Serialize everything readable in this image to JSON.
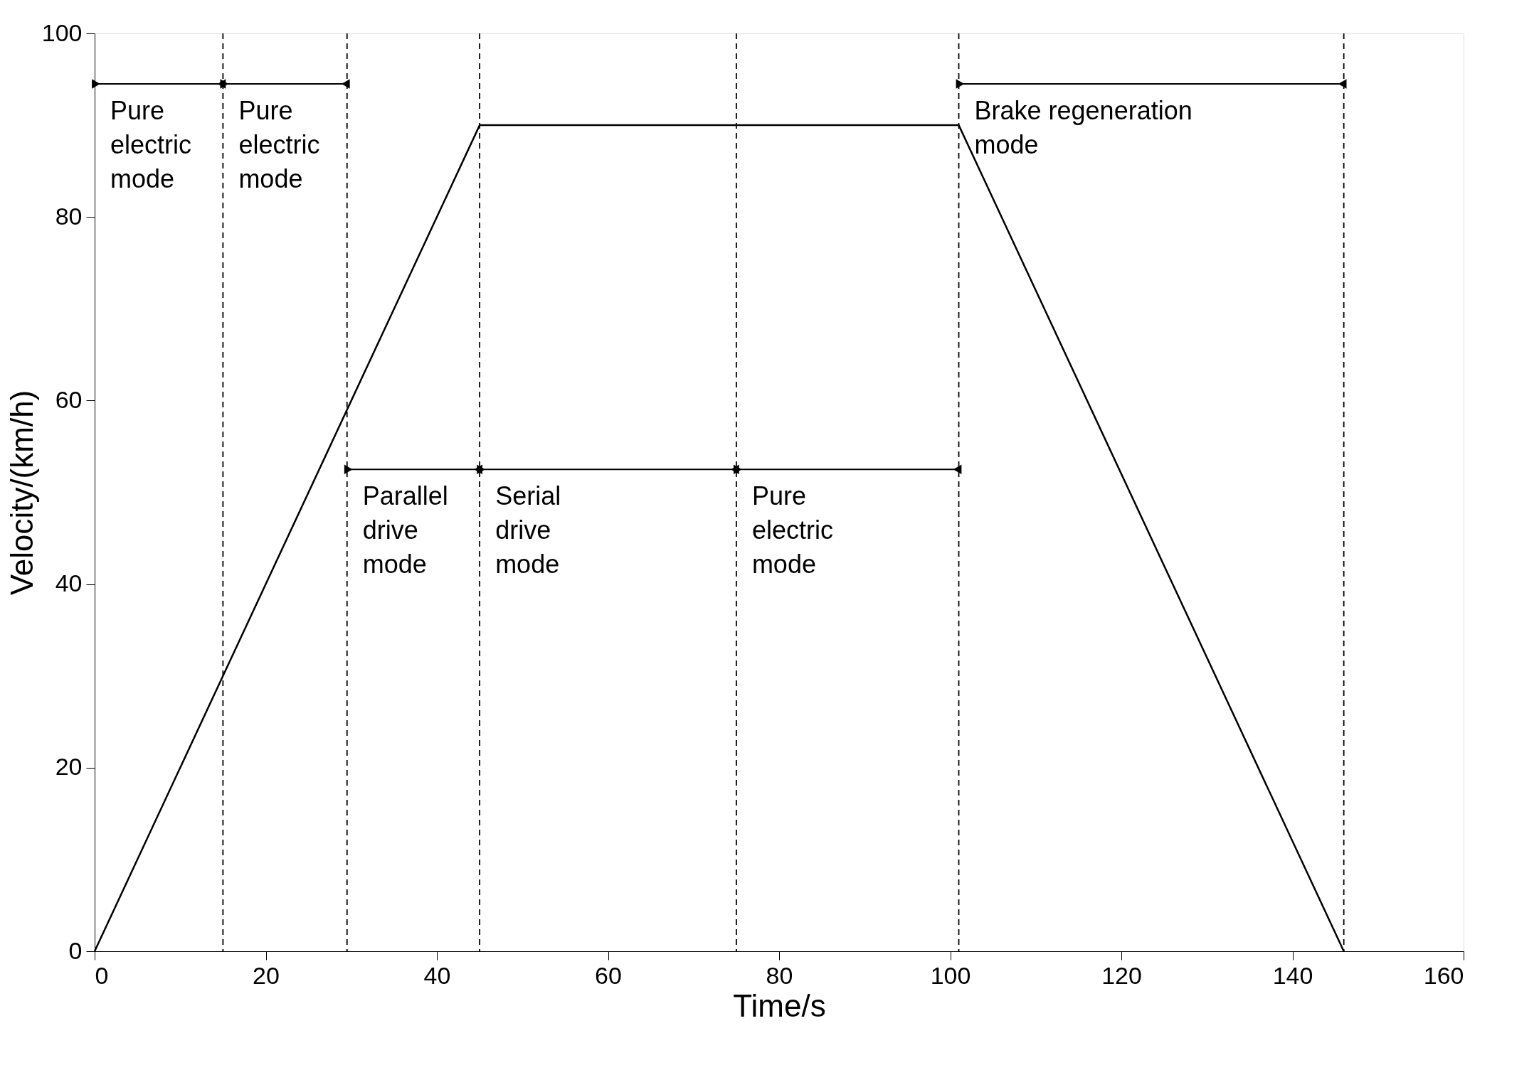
{
  "chart_data": {
    "type": "line",
    "xlabel": "Time/s",
    "ylabel": "Velocity/(km/h)",
    "x": [
      0,
      45,
      101,
      146
    ],
    "series": [
      {
        "color": "#000000",
        "values": [
          0,
          90,
          90,
          0
        ]
      }
    ],
    "xlim": [
      0,
      160
    ],
    "xticks": [
      0,
      20,
      40,
      60,
      80,
      100,
      120,
      140,
      160
    ],
    "ylim": [
      0,
      100
    ],
    "yticks": [
      0,
      20,
      40,
      60,
      80,
      100
    ],
    "grid": false,
    "marker": "none",
    "line_style": "solid",
    "ref_lines": [
      {
        "axis": "x",
        "value": 15,
        "line_style": "dashed",
        "color": "#000000"
      },
      {
        "axis": "x",
        "value": 29.5,
        "line_style": "dashed",
        "color": "#000000"
      },
      {
        "axis": "x",
        "value": 45,
        "line_style": "dashed",
        "color": "#000000"
      },
      {
        "axis": "x",
        "value": 75,
        "line_style": "dashed",
        "color": "#000000"
      },
      {
        "axis": "x",
        "value": 101,
        "line_style": "dashed",
        "color": "#000000"
      },
      {
        "axis": "x",
        "value": 146,
        "line_style": "dashed",
        "color": "#000000"
      }
    ],
    "annotations": [
      {
        "text": "Pure\nelectric\nmode",
        "x": 0,
        "y": 94.5
      },
      {
        "text": "Pure\nelectric\nmode",
        "x": 15,
        "y": 94.5
      },
      {
        "text": "Parallel\ndrive\nmode",
        "x": 29.5,
        "y": 52.5
      },
      {
        "text": "Serial\ndrive\nmode",
        "x": 45,
        "y": 52.5
      },
      {
        "text": "Pure\nelectric\nmode",
        "x": 75,
        "y": 52.5
      },
      {
        "text": "Brake regeneration\nmode",
        "x": 101,
        "y": 94.5
      }
    ]
  }
}
